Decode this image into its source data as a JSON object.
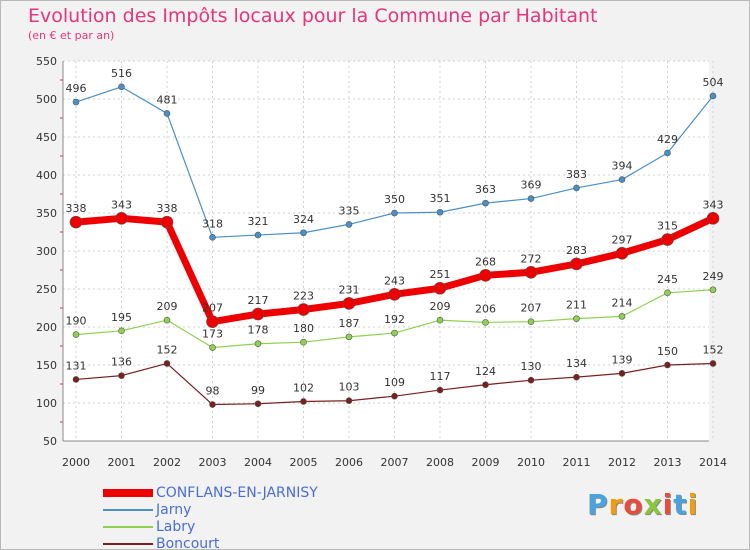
{
  "title": "Evolution des Impôts locaux pour la Commune par Habitant",
  "subtitle": "(en € et par an)",
  "logo_text": "Proxiti",
  "chart_data": {
    "type": "line",
    "title": "Evolution des Impôts locaux pour la Commune par Habitant",
    "subtitle": "(en € et par an)",
    "xlabel": "",
    "ylabel": "",
    "x": [
      "2000",
      "2001",
      "2002",
      "2003",
      "2004",
      "2005",
      "2006",
      "2007",
      "2008",
      "2009",
      "2010",
      "2011",
      "2012",
      "2013",
      "2014"
    ],
    "ylim": [
      50,
      550
    ],
    "yticks": [
      50,
      100,
      150,
      200,
      250,
      300,
      350,
      400,
      450,
      500,
      550
    ],
    "grid": "horizontal dashed",
    "legend_position": "bottom-left",
    "series": [
      {
        "name": "CONFLANS-EN-JARNISY",
        "color": "#ee0000",
        "values": [
          338,
          343,
          338,
          207,
          217,
          223,
          231,
          243,
          251,
          268,
          272,
          283,
          297,
          315,
          343
        ]
      },
      {
        "name": "Jarny",
        "color": "#4a90c8",
        "values": [
          496,
          516,
          481,
          318,
          321,
          324,
          335,
          350,
          351,
          363,
          369,
          383,
          394,
          429,
          504
        ]
      },
      {
        "name": "Labry",
        "color": "#8fd14f",
        "values": [
          190,
          195,
          209,
          173,
          178,
          180,
          187,
          192,
          209,
          206,
          207,
          211,
          214,
          245,
          249
        ]
      },
      {
        "name": "Boncourt",
        "color": "#7a1f1f",
        "values": [
          131,
          136,
          152,
          98,
          99,
          102,
          103,
          109,
          117,
          124,
          130,
          134,
          139,
          150,
          152
        ]
      }
    ]
  }
}
